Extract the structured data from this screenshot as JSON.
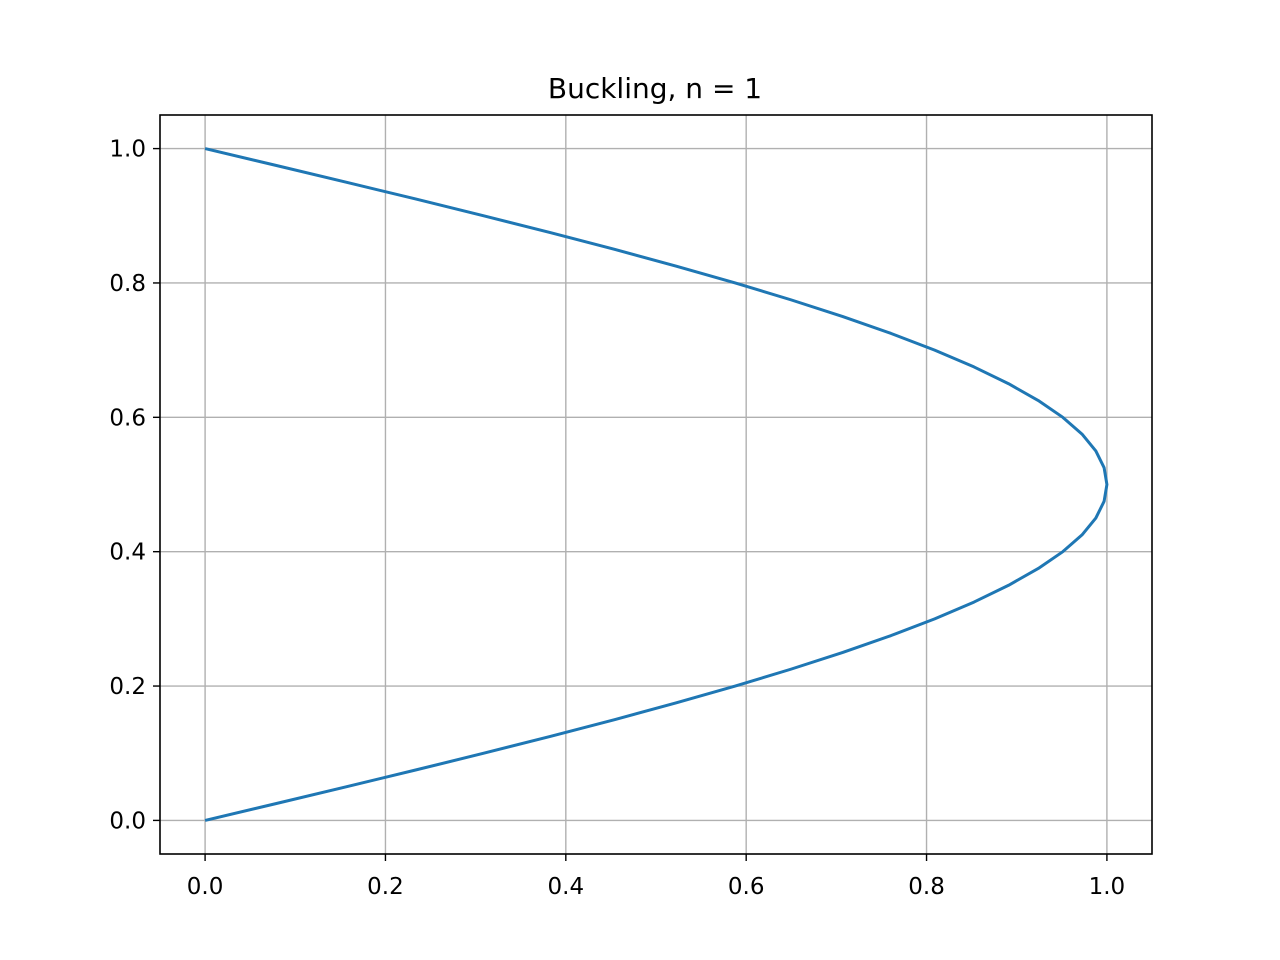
{
  "chart_data": {
    "type": "line",
    "title": "Buckling, n = 1",
    "xlabel": "",
    "ylabel": "",
    "xlim": [
      -0.05,
      1.05
    ],
    "ylim": [
      -0.05,
      1.05
    ],
    "grid": true,
    "x_ticks": [
      "0.0",
      "0.2",
      "0.4",
      "0.6",
      "0.8",
      "1.0"
    ],
    "y_ticks": [
      "0.0",
      "0.2",
      "0.4",
      "0.6",
      "0.8",
      "1.0"
    ],
    "series": [
      {
        "color": "#1f77b4",
        "x": [
          0.0,
          0.0785,
          0.1564,
          0.2334,
          0.309,
          0.3827,
          0.454,
          0.5225,
          0.5878,
          0.6494,
          0.7071,
          0.7604,
          0.809,
          0.8526,
          0.891,
          0.9239,
          0.9511,
          0.9724,
          0.9877,
          0.9969,
          1.0,
          0.9969,
          0.9877,
          0.9724,
          0.9511,
          0.9239,
          0.891,
          0.8526,
          0.809,
          0.7604,
          0.7071,
          0.6494,
          0.5878,
          0.5225,
          0.454,
          0.3827,
          0.309,
          0.2334,
          0.1564,
          0.0785,
          0.0
        ],
        "y": [
          0.0,
          0.025,
          0.05,
          0.075,
          0.1,
          0.125,
          0.15,
          0.175,
          0.2,
          0.225,
          0.25,
          0.275,
          0.3,
          0.325,
          0.35,
          0.375,
          0.4,
          0.425,
          0.45,
          0.475,
          0.5,
          0.525,
          0.55,
          0.575,
          0.6,
          0.625,
          0.65,
          0.675,
          0.7,
          0.725,
          0.75,
          0.775,
          0.8,
          0.825,
          0.85,
          0.875,
          0.9,
          0.925,
          0.95,
          0.975,
          1.0
        ]
      }
    ]
  }
}
